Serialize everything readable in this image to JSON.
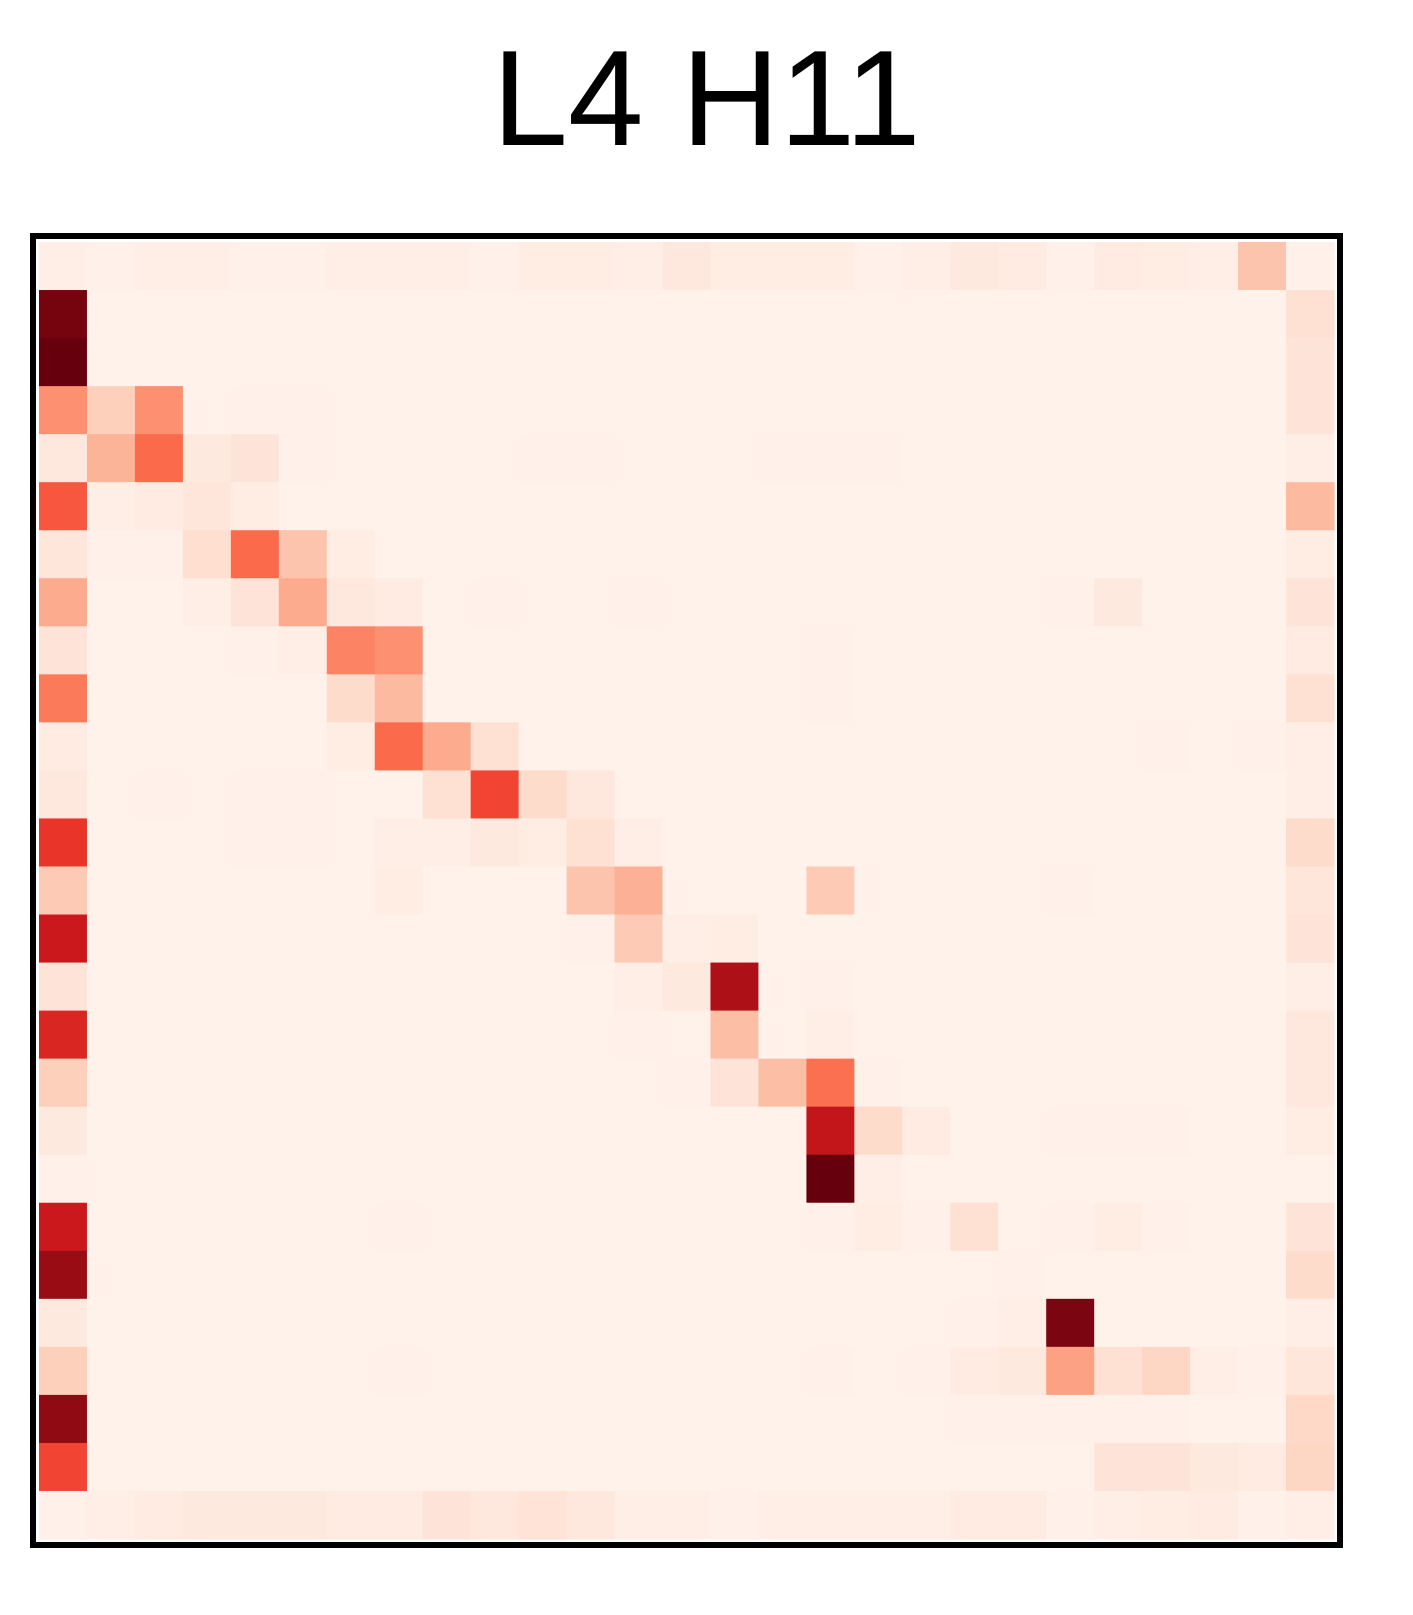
{
  "chart_data": {
    "type": "heatmap",
    "title": "L4 H11",
    "xlabel": "",
    "ylabel": "",
    "rows": 27,
    "cols": 27,
    "colormap": "Reds",
    "vmin": 0,
    "vmax": 1,
    "colorbar": false,
    "tick_labels": false,
    "values": [
      [
        0.04,
        0.03,
        0.04,
        0.04,
        0.03,
        0.03,
        0.04,
        0.04,
        0.04,
        0.03,
        0.05,
        0.05,
        0.04,
        0.08,
        0.05,
        0.05,
        0.05,
        0.03,
        0.04,
        0.07,
        0.06,
        0.03,
        0.06,
        0.05,
        0.04,
        0.22,
        0.03
      ],
      [
        0.97,
        0.02,
        0.02,
        0.02,
        0.02,
        0.02,
        0.02,
        0.02,
        0.02,
        0.02,
        0.02,
        0.02,
        0.02,
        0.02,
        0.02,
        0.02,
        0.02,
        0.02,
        0.02,
        0.02,
        0.02,
        0.02,
        0.02,
        0.02,
        0.02,
        0.02,
        0.12
      ],
      [
        1.0,
        0.02,
        0.02,
        0.02,
        0.02,
        0.02,
        0.02,
        0.02,
        0.02,
        0.02,
        0.02,
        0.02,
        0.02,
        0.02,
        0.02,
        0.02,
        0.02,
        0.02,
        0.02,
        0.02,
        0.02,
        0.02,
        0.02,
        0.02,
        0.02,
        0.02,
        0.1
      ],
      [
        0.38,
        0.18,
        0.38,
        0.02,
        0.03,
        0.03,
        0.02,
        0.02,
        0.02,
        0.02,
        0.02,
        0.02,
        0.02,
        0.02,
        0.02,
        0.02,
        0.02,
        0.02,
        0.02,
        0.02,
        0.02,
        0.02,
        0.02,
        0.02,
        0.02,
        0.02,
        0.1
      ],
      [
        0.08,
        0.27,
        0.5,
        0.07,
        0.1,
        0.03,
        0.02,
        0.02,
        0.02,
        0.02,
        0.03,
        0.03,
        0.02,
        0.02,
        0.02,
        0.03,
        0.03,
        0.03,
        0.02,
        0.02,
        0.02,
        0.02,
        0.02,
        0.02,
        0.02,
        0.02,
        0.04
      ],
      [
        0.55,
        0.04,
        0.06,
        0.09,
        0.05,
        0.02,
        0.02,
        0.02,
        0.02,
        0.02,
        0.02,
        0.02,
        0.02,
        0.02,
        0.02,
        0.02,
        0.02,
        0.02,
        0.02,
        0.02,
        0.02,
        0.02,
        0.02,
        0.02,
        0.02,
        0.02,
        0.25
      ],
      [
        0.09,
        0.03,
        0.03,
        0.13,
        0.5,
        0.22,
        0.05,
        0.02,
        0.02,
        0.02,
        0.02,
        0.02,
        0.02,
        0.02,
        0.02,
        0.02,
        0.02,
        0.02,
        0.02,
        0.02,
        0.02,
        0.02,
        0.02,
        0.02,
        0.02,
        0.02,
        0.05
      ],
      [
        0.3,
        0.02,
        0.02,
        0.04,
        0.1,
        0.3,
        0.08,
        0.06,
        0.02,
        0.03,
        0.02,
        0.02,
        0.03,
        0.02,
        0.02,
        0.02,
        0.02,
        0.02,
        0.02,
        0.02,
        0.02,
        0.03,
        0.07,
        0.02,
        0.02,
        0.02,
        0.1
      ],
      [
        0.1,
        0.02,
        0.02,
        0.02,
        0.03,
        0.04,
        0.42,
        0.38,
        0.02,
        0.02,
        0.02,
        0.02,
        0.02,
        0.02,
        0.02,
        0.02,
        0.03,
        0.02,
        0.02,
        0.02,
        0.02,
        0.02,
        0.02,
        0.02,
        0.02,
        0.02,
        0.06
      ],
      [
        0.45,
        0.02,
        0.02,
        0.02,
        0.02,
        0.02,
        0.14,
        0.25,
        0.02,
        0.02,
        0.02,
        0.02,
        0.02,
        0.02,
        0.02,
        0.02,
        0.03,
        0.02,
        0.02,
        0.02,
        0.02,
        0.02,
        0.02,
        0.02,
        0.02,
        0.02,
        0.12
      ],
      [
        0.06,
        0.02,
        0.02,
        0.02,
        0.02,
        0.02,
        0.05,
        0.5,
        0.3,
        0.12,
        0.02,
        0.02,
        0.02,
        0.02,
        0.02,
        0.02,
        0.02,
        0.02,
        0.02,
        0.02,
        0.02,
        0.02,
        0.02,
        0.03,
        0.02,
        0.03,
        0.04
      ],
      [
        0.08,
        0.02,
        0.03,
        0.02,
        0.03,
        0.03,
        0.02,
        0.02,
        0.12,
        0.6,
        0.14,
        0.08,
        0.02,
        0.02,
        0.02,
        0.02,
        0.02,
        0.02,
        0.02,
        0.02,
        0.02,
        0.02,
        0.02,
        0.02,
        0.02,
        0.02,
        0.04
      ],
      [
        0.65,
        0.02,
        0.02,
        0.02,
        0.03,
        0.03,
        0.02,
        0.04,
        0.04,
        0.07,
        0.05,
        0.12,
        0.04,
        0.02,
        0.02,
        0.02,
        0.02,
        0.02,
        0.02,
        0.02,
        0.02,
        0.02,
        0.02,
        0.02,
        0.02,
        0.02,
        0.14
      ],
      [
        0.2,
        0.02,
        0.02,
        0.02,
        0.02,
        0.02,
        0.02,
        0.05,
        0.02,
        0.02,
        0.02,
        0.22,
        0.28,
        0.02,
        0.02,
        0.02,
        0.2,
        0.02,
        0.02,
        0.02,
        0.02,
        0.03,
        0.02,
        0.02,
        0.02,
        0.02,
        0.09
      ],
      [
        0.75,
        0.02,
        0.02,
        0.02,
        0.02,
        0.02,
        0.02,
        0.02,
        0.02,
        0.02,
        0.02,
        0.03,
        0.2,
        0.04,
        0.05,
        0.02,
        0.02,
        0.02,
        0.02,
        0.02,
        0.02,
        0.02,
        0.02,
        0.02,
        0.02,
        0.02,
        0.1
      ],
      [
        0.1,
        0.02,
        0.02,
        0.02,
        0.02,
        0.02,
        0.02,
        0.02,
        0.02,
        0.02,
        0.02,
        0.02,
        0.04,
        0.07,
        0.85,
        0.02,
        0.03,
        0.02,
        0.02,
        0.02,
        0.02,
        0.02,
        0.02,
        0.02,
        0.02,
        0.02,
        0.04
      ],
      [
        0.7,
        0.02,
        0.02,
        0.02,
        0.02,
        0.02,
        0.02,
        0.02,
        0.02,
        0.02,
        0.02,
        0.02,
        0.03,
        0.02,
        0.24,
        0.02,
        0.04,
        0.02,
        0.02,
        0.02,
        0.02,
        0.02,
        0.02,
        0.02,
        0.02,
        0.02,
        0.08
      ],
      [
        0.18,
        0.02,
        0.02,
        0.02,
        0.02,
        0.02,
        0.02,
        0.02,
        0.02,
        0.02,
        0.02,
        0.02,
        0.02,
        0.03,
        0.1,
        0.24,
        0.48,
        0.03,
        0.02,
        0.02,
        0.02,
        0.02,
        0.02,
        0.02,
        0.02,
        0.02,
        0.08
      ],
      [
        0.07,
        0.02,
        0.02,
        0.02,
        0.02,
        0.02,
        0.02,
        0.02,
        0.02,
        0.02,
        0.02,
        0.02,
        0.02,
        0.02,
        0.02,
        0.02,
        0.78,
        0.14,
        0.06,
        0.02,
        0.02,
        0.03,
        0.03,
        0.03,
        0.02,
        0.02,
        0.05
      ],
      [
        0.03,
        0.02,
        0.02,
        0.02,
        0.02,
        0.02,
        0.02,
        0.02,
        0.02,
        0.02,
        0.02,
        0.02,
        0.02,
        0.02,
        0.02,
        0.02,
        1.0,
        0.04,
        0.02,
        0.02,
        0.02,
        0.02,
        0.02,
        0.02,
        0.02,
        0.02,
        0.02
      ],
      [
        0.75,
        0.02,
        0.02,
        0.02,
        0.02,
        0.02,
        0.02,
        0.03,
        0.02,
        0.02,
        0.02,
        0.02,
        0.02,
        0.02,
        0.02,
        0.02,
        0.03,
        0.05,
        0.03,
        0.12,
        0.02,
        0.03,
        0.05,
        0.03,
        0.02,
        0.02,
        0.1
      ],
      [
        0.9,
        0.02,
        0.02,
        0.02,
        0.02,
        0.02,
        0.02,
        0.02,
        0.02,
        0.02,
        0.02,
        0.02,
        0.02,
        0.02,
        0.02,
        0.02,
        0.02,
        0.02,
        0.02,
        0.02,
        0.03,
        0.02,
        0.02,
        0.02,
        0.02,
        0.02,
        0.14
      ],
      [
        0.07,
        0.02,
        0.02,
        0.02,
        0.02,
        0.02,
        0.02,
        0.02,
        0.02,
        0.02,
        0.02,
        0.02,
        0.02,
        0.02,
        0.02,
        0.02,
        0.02,
        0.02,
        0.02,
        0.03,
        0.04,
        0.96,
        0.02,
        0.02,
        0.02,
        0.02,
        0.04
      ],
      [
        0.18,
        0.02,
        0.02,
        0.02,
        0.02,
        0.02,
        0.02,
        0.03,
        0.02,
        0.02,
        0.02,
        0.02,
        0.02,
        0.02,
        0.02,
        0.02,
        0.03,
        0.02,
        0.03,
        0.06,
        0.07,
        0.33,
        0.12,
        0.16,
        0.04,
        0.03,
        0.09
      ],
      [
        0.92,
        0.02,
        0.02,
        0.02,
        0.02,
        0.02,
        0.02,
        0.02,
        0.02,
        0.02,
        0.02,
        0.02,
        0.02,
        0.02,
        0.02,
        0.02,
        0.02,
        0.02,
        0.02,
        0.03,
        0.03,
        0.03,
        0.03,
        0.03,
        0.02,
        0.02,
        0.15
      ],
      [
        0.6,
        0.02,
        0.02,
        0.02,
        0.02,
        0.02,
        0.02,
        0.02,
        0.02,
        0.02,
        0.02,
        0.02,
        0.02,
        0.02,
        0.02,
        0.02,
        0.02,
        0.02,
        0.02,
        0.02,
        0.02,
        0.02,
        0.1,
        0.1,
        0.07,
        0.06,
        0.16
      ],
      [
        0.03,
        0.04,
        0.06,
        0.07,
        0.07,
        0.07,
        0.06,
        0.06,
        0.1,
        0.08,
        0.11,
        0.08,
        0.04,
        0.04,
        0.03,
        0.04,
        0.04,
        0.04,
        0.04,
        0.06,
        0.06,
        0.03,
        0.04,
        0.05,
        0.06,
        0.03,
        0.04
      ]
    ]
  }
}
